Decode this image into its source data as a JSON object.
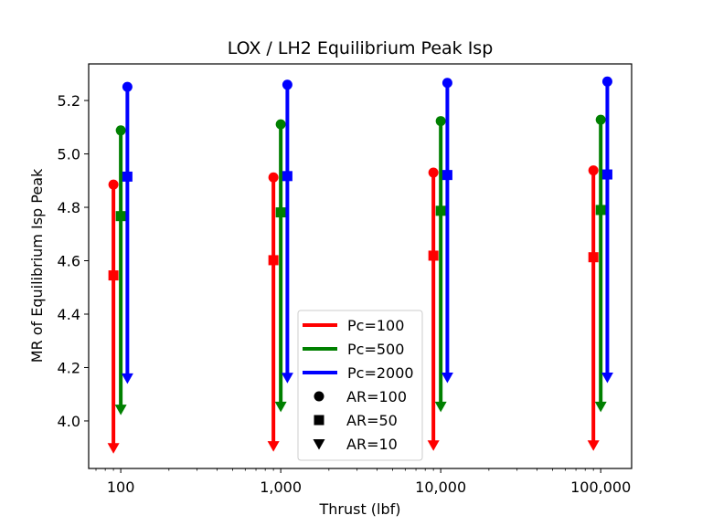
{
  "chart_data": {
    "type": "scatter",
    "title": "LOX / LH2 Equilibrium Peak Isp",
    "xlabel": "Thrust (lbf)",
    "ylabel": "MR of Equilibrium Isp Peak",
    "xscale": "log",
    "xlim": [
      63,
      156000
    ],
    "ylim": [
      3.822,
      5.337
    ],
    "xticks": [
      {
        "value": 100,
        "label": "100"
      },
      {
        "value": 1000,
        "label": "1,000"
      },
      {
        "value": 10000,
        "label": "10,000"
      },
      {
        "value": 100000,
        "label": "100,000"
      }
    ],
    "yticks": [
      {
        "value": 4.0,
        "label": "4.0"
      },
      {
        "value": 4.2,
        "label": "4.2"
      },
      {
        "value": 4.4,
        "label": "4.4"
      },
      {
        "value": 4.6,
        "label": "4.6"
      },
      {
        "value": 4.8,
        "label": "4.8"
      },
      {
        "value": 5.0,
        "label": "5.0"
      },
      {
        "value": 5.2,
        "label": "5.2"
      }
    ],
    "grid": false,
    "legend_position": "bottom-center",
    "categories": [
      100,
      1000,
      10000,
      100000
    ],
    "series": [
      {
        "name": "Pc=100",
        "color": "#ff0000",
        "x_multiplier": 0.9,
        "AR100": [
          4.885,
          4.912,
          4.93,
          4.938
        ],
        "AR50": [
          4.545,
          4.602,
          4.619,
          4.613
        ],
        "AR10": [
          3.9,
          3.907,
          3.91,
          3.91
        ]
      },
      {
        "name": "Pc=500",
        "color": "#008000",
        "x_multiplier": 1.0,
        "AR100": [
          5.088,
          5.111,
          5.123,
          5.128
        ],
        "AR50": [
          4.767,
          4.781,
          4.787,
          4.79
        ],
        "AR10": [
          4.044,
          4.055,
          4.055,
          4.055
        ]
      },
      {
        "name": "Pc=2000",
        "color": "#0000ff",
        "x_multiplier": 1.1,
        "AR100": [
          5.251,
          5.259,
          5.266,
          5.271
        ],
        "AR50": [
          4.915,
          4.917,
          4.921,
          4.923
        ],
        "AR10": [
          4.161,
          4.163,
          4.164,
          4.164
        ]
      }
    ],
    "legend": {
      "lines": [
        {
          "label": "Pc=100",
          "color": "#ff0000"
        },
        {
          "label": "Pc=500",
          "color": "#008000"
        },
        {
          "label": "Pc=2000",
          "color": "#0000ff"
        }
      ],
      "markers": [
        {
          "label": "AR=100",
          "marker": "circle"
        },
        {
          "label": "AR=50",
          "marker": "square"
        },
        {
          "label": "AR=10",
          "marker": "triangle-down"
        }
      ]
    }
  }
}
